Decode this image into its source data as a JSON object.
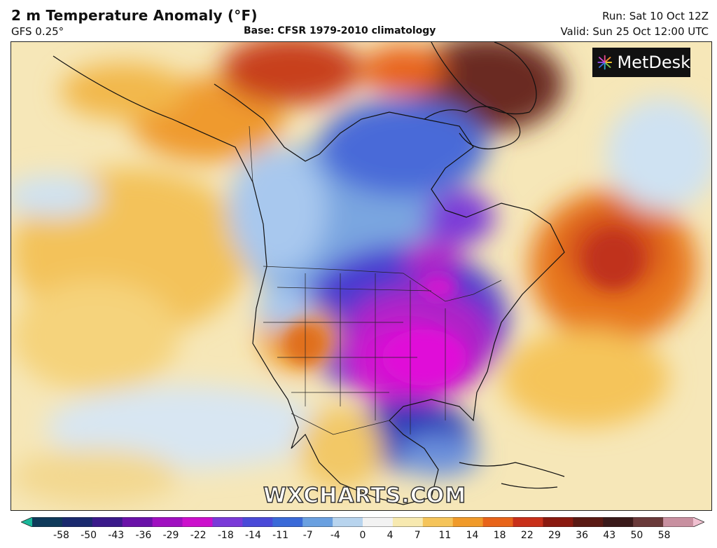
{
  "header": {
    "title": "2 m Temperature Anomaly (°F)",
    "model": "GFS 0.25°",
    "base": "Base: CFSR 1979-2010 climatology",
    "run": "Run: Sat 10 Oct 12Z",
    "valid": "Valid: Sun 25 Oct 12:00 UTC"
  },
  "logo": {
    "text": "MetDesk",
    "icon": "metdesk-star-logo"
  },
  "watermark": "WXCHARTS.COM",
  "colorbar": {
    "ticks": [
      "-58",
      "-50",
      "-43",
      "-36",
      "-29",
      "-22",
      "-18",
      "-14",
      "-11",
      "-7",
      "-4",
      "0",
      "4",
      "7",
      "11",
      "14",
      "18",
      "22",
      "29",
      "36",
      "43",
      "50",
      "58"
    ],
    "colors": [
      "#1bb89a",
      "#0f3a5a",
      "#1a2a6e",
      "#3a1a8a",
      "#6a12a8",
      "#a010c0",
      "#cc10cc",
      "#7a3ad8",
      "#4a4ad8",
      "#3a6ad8",
      "#6aa0e0",
      "#b8d4ee",
      "#f2f2f2",
      "#f7e9b0",
      "#f5c45a",
      "#f09a2a",
      "#e8641a",
      "#c8301a",
      "#8a1a10",
      "#5a1a14",
      "#3a1a1a",
      "#6a3a3a",
      "#c890a0",
      "#f0c0d0"
    ]
  }
}
